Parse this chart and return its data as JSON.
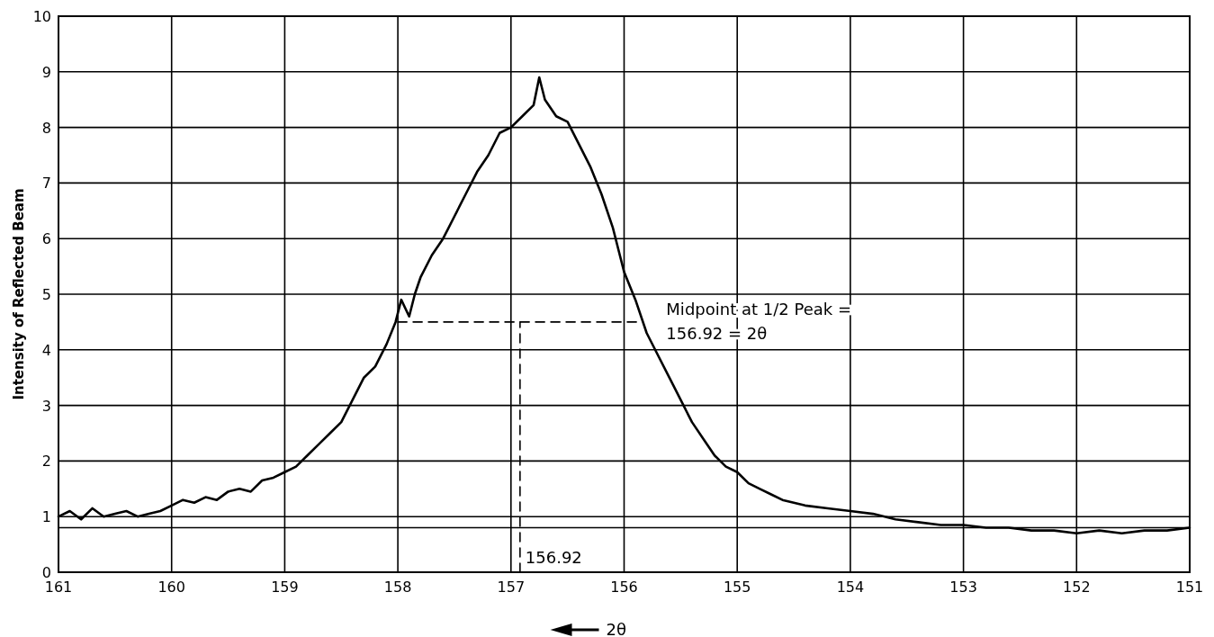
{
  "chart_data": {
    "type": "line",
    "xlabel": "2θ",
    "ylabel": "Intensity of Reflected Beam",
    "xlim": [
      161,
      151
    ],
    "ylim": [
      0,
      10
    ],
    "xticks": [
      161,
      160,
      159,
      158,
      157,
      156,
      155,
      154,
      153,
      152,
      151
    ],
    "yticks": [
      0,
      1,
      2,
      3,
      4,
      5,
      6,
      7,
      8,
      9,
      10
    ],
    "grid": true,
    "series": [
      {
        "color": "#000000",
        "line_style": "solid",
        "x": [
          161,
          160.9,
          160.8,
          160.7,
          160.6,
          160.5,
          160.4,
          160.3,
          160.2,
          160.1,
          160,
          159.9,
          159.8,
          159.7,
          159.6,
          159.5,
          159.4,
          159.3,
          159.2,
          159.1,
          159,
          158.9,
          158.8,
          158.7,
          158.6,
          158.5,
          158.4,
          158.3,
          158.2,
          158.1,
          158.02,
          157.97,
          157.9,
          157.85,
          157.8,
          157.7,
          157.6,
          157.5,
          157.4,
          157.3,
          157.2,
          157.1,
          157,
          156.9,
          156.8,
          156.75,
          156.7,
          156.6,
          156.5,
          156.4,
          156.3,
          156.2,
          156.1,
          156,
          155.9,
          155.8,
          155.7,
          155.6,
          155.5,
          155.4,
          155.3,
          155.2,
          155.1,
          155,
          154.9,
          154.8,
          154.7,
          154.6,
          154.5,
          154.4,
          154.2,
          154,
          153.8,
          153.6,
          153.4,
          153.2,
          153,
          152.8,
          152.6,
          152.4,
          152.2,
          152,
          151.8,
          151.6,
          151.4,
          151.2,
          151
        ],
        "values": [
          1.0,
          1.1,
          0.95,
          1.15,
          1.0,
          1.05,
          1.1,
          1.0,
          1.05,
          1.1,
          1.2,
          1.3,
          1.25,
          1.35,
          1.3,
          1.45,
          1.5,
          1.45,
          1.65,
          1.7,
          1.8,
          1.9,
          2.1,
          2.3,
          2.5,
          2.7,
          3.1,
          3.5,
          3.7,
          4.1,
          4.5,
          4.9,
          4.6,
          5.0,
          5.3,
          5.7,
          6.0,
          6.4,
          6.8,
          7.2,
          7.5,
          7.9,
          8.0,
          8.2,
          8.4,
          8.9,
          8.5,
          8.2,
          8.1,
          7.7,
          7.3,
          6.8,
          6.2,
          5.4,
          4.9,
          4.3,
          3.9,
          3.5,
          3.1,
          2.7,
          2.4,
          2.1,
          1.9,
          1.8,
          1.6,
          1.5,
          1.4,
          1.3,
          1.25,
          1.2,
          1.15,
          1.1,
          1.05,
          0.95,
          0.9,
          0.85,
          0.85,
          0.8,
          0.8,
          0.75,
          0.75,
          0.7,
          0.75,
          0.7,
          0.75,
          0.75,
          0.8
        ]
      },
      {
        "color": "#000000",
        "line_style": "dashed",
        "x": [
          158,
          155.85
        ],
        "values": [
          4.5,
          4.5
        ]
      },
      {
        "color": "#000000",
        "line_style": "dashed",
        "x": [
          156.92,
          156.92
        ],
        "values": [
          0,
          4.5
        ]
      }
    ],
    "ref_lines": [
      {
        "axis": "y",
        "value": 0.8,
        "color": "#000000",
        "line_style": "solid"
      }
    ],
    "annotations": [
      "Midpoint at 1/2 Peak =",
      "156.92 = 2θ",
      {
        "text": "156.92",
        "x": 156.92,
        "y": 0
      }
    ]
  }
}
